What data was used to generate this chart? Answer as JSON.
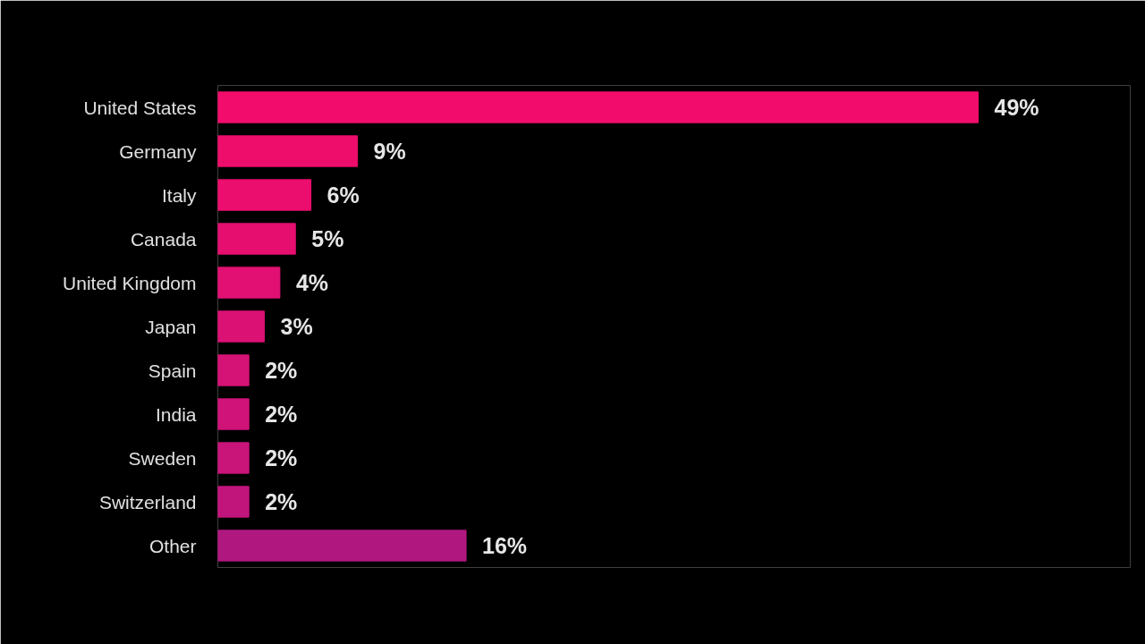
{
  "chart_data": {
    "type": "bar",
    "orientation": "horizontal",
    "tick_labels": "y",
    "categories": [
      "United States",
      "Germany",
      "Italy",
      "Canada",
      "United Kingdom",
      "Japan",
      "Spain",
      "India",
      "Sweden",
      "Switzerland",
      "Other"
    ],
    "values": [
      49,
      9,
      6,
      5,
      4,
      3,
      2,
      2,
      2,
      2,
      16
    ],
    "value_labels": [
      "49%",
      "9%",
      "6%",
      "5%",
      "4%",
      "3%",
      "2%",
      "2%",
      "2%",
      "2%",
      "16%"
    ],
    "colors": [
      "#f20c6b",
      "#ef0d6c",
      "#eb0e6e",
      "#e60f70",
      "#e11072",
      "#db1174",
      "#d51276",
      "#cf1378",
      "#c9147a",
      "#c2157c",
      "#b0187f"
    ]
  }
}
